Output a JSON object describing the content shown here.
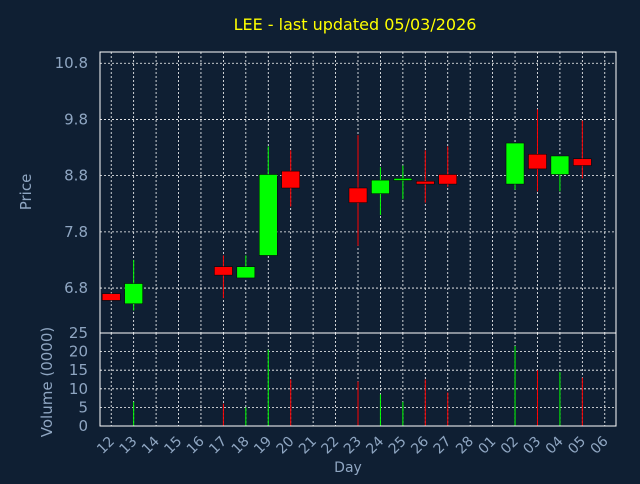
{
  "chart_data": {
    "type": "candlestick",
    "title": "LEE - last updated 05/03/2026",
    "colors": {
      "background": "#0f1f33",
      "title": "#ffff00",
      "axis_text": "#8fa6c2",
      "frame": "#ffffff",
      "grid": "#ffffff",
      "up": "#00ff00",
      "down": "#ff0000"
    },
    "price_panel": {
      "ylabel": "Price",
      "ylim": [
        6.0,
        11.0
      ],
      "yticks": [
        6.8,
        7.8,
        8.8,
        9.8,
        10.8
      ],
      "ytick_labels": [
        "6.8",
        "7.8",
        "8.8",
        "9.8",
        "10.8"
      ],
      "grid": true
    },
    "volume_panel": {
      "ylabel": "Volume (0000)",
      "ylim": [
        0,
        25
      ],
      "yticks": [
        0,
        5,
        10,
        15,
        20,
        25
      ],
      "ytick_labels": [
        "0",
        "5",
        "10",
        "15",
        "20",
        "25"
      ],
      "grid": true
    },
    "xlabel": "Day",
    "x_labels": [
      "12",
      "13",
      "14",
      "15",
      "16",
      "17",
      "18",
      "19",
      "20",
      "21",
      "22",
      "23",
      "24",
      "25",
      "26",
      "27",
      "28",
      "01",
      "02",
      "03",
      "04",
      "05",
      "06"
    ],
    "candles": [
      {
        "slot": 0,
        "open": 6.7,
        "close": 6.58,
        "high": 6.7,
        "low": 6.58,
        "volume": 0
      },
      {
        "slot": 1,
        "open": 6.52,
        "close": 6.88,
        "high": 7.3,
        "low": 6.4,
        "volume": 6.5
      },
      {
        "slot": 5,
        "open": 7.18,
        "close": 7.03,
        "high": 7.38,
        "low": 6.62,
        "volume": 6
      },
      {
        "slot": 6,
        "open": 6.98,
        "close": 7.18,
        "high": 7.38,
        "low": 6.98,
        "volume": 5
      },
      {
        "slot": 7,
        "open": 7.38,
        "close": 8.82,
        "high": 9.32,
        "low": 7.38,
        "volume": 20.5
      },
      {
        "slot": 8,
        "open": 8.88,
        "close": 8.58,
        "high": 9.25,
        "low": 8.25,
        "volume": 12.5
      },
      {
        "slot": 11,
        "open": 8.58,
        "close": 8.32,
        "high": 9.52,
        "low": 7.55,
        "volume": 12
      },
      {
        "slot": 12,
        "open": 8.48,
        "close": 8.72,
        "high": 8.95,
        "low": 8.1,
        "volume": 8.5
      },
      {
        "slot": 13,
        "open": 8.72,
        "close": 8.75,
        "high": 8.98,
        "low": 8.38,
        "volume": 6.5
      },
      {
        "slot": 14,
        "open": 8.7,
        "close": 8.65,
        "high": 9.25,
        "low": 8.32,
        "volume": 12.5
      },
      {
        "slot": 15,
        "open": 8.82,
        "close": 8.65,
        "high": 9.32,
        "low": 8.6,
        "volume": 9
      },
      {
        "slot": 18,
        "open": 8.65,
        "close": 9.38,
        "high": 9.38,
        "low": 8.55,
        "volume": 21.5
      },
      {
        "slot": 19,
        "open": 9.18,
        "close": 8.92,
        "high": 9.98,
        "low": 8.52,
        "volume": 15
      },
      {
        "slot": 20,
        "open": 8.82,
        "close": 9.15,
        "high": 9.15,
        "low": 8.52,
        "volume": 14.5
      },
      {
        "slot": 21,
        "open": 9.1,
        "close": 8.98,
        "high": 9.78,
        "low": 8.75,
        "volume": 13
      }
    ]
  }
}
